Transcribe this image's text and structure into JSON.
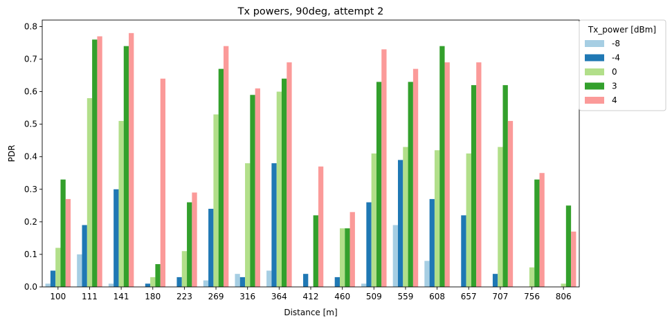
{
  "chart_data": {
    "type": "bar",
    "title": "Tx powers, 90deg, attempt 2",
    "xlabel": "Distance [m]",
    "ylabel": "PDR",
    "ylim": [
      0,
      0.82
    ],
    "yticks": [
      "0.0",
      "0.1",
      "0.2",
      "0.3",
      "0.4",
      "0.5",
      "0.6",
      "0.7",
      "0.8"
    ],
    "ytick_values": [
      0.0,
      0.1,
      0.2,
      0.3,
      0.4,
      0.5,
      0.6,
      0.7,
      0.8
    ],
    "grid": false,
    "legend": {
      "title": "Tx_power [dBm]",
      "placement": "outside-top-right"
    },
    "categories": [
      "100",
      "111",
      "141",
      "180",
      "223",
      "269",
      "316",
      "364",
      "412",
      "460",
      "509",
      "559",
      "608",
      "657",
      "707",
      "756",
      "806"
    ],
    "series": [
      {
        "name": "-8",
        "color": "#a6cee3",
        "values": [
          0.01,
          0.1,
          0.01,
          0.0,
          0.0,
          0.02,
          0.04,
          0.05,
          0.0,
          0.0,
          0.01,
          0.19,
          0.08,
          0.0,
          0.0,
          0.0,
          0.0
        ]
      },
      {
        "name": "-4",
        "color": "#1f78b4",
        "values": [
          0.05,
          0.19,
          0.3,
          0.01,
          0.03,
          0.24,
          0.03,
          0.38,
          0.04,
          0.03,
          0.26,
          0.39,
          0.27,
          0.22,
          0.04,
          0.0,
          0.0
        ]
      },
      {
        "name": "0",
        "color": "#b2df8a",
        "values": [
          0.12,
          0.58,
          0.51,
          0.03,
          0.11,
          0.53,
          0.38,
          0.6,
          0.0,
          0.18,
          0.41,
          0.43,
          0.42,
          0.41,
          0.43,
          0.06,
          0.01
        ]
      },
      {
        "name": "3",
        "color": "#33a02c",
        "values": [
          0.33,
          0.76,
          0.74,
          0.07,
          0.26,
          0.67,
          0.59,
          0.64,
          0.22,
          0.18,
          0.63,
          0.63,
          0.74,
          0.62,
          0.62,
          0.33,
          0.25
        ]
      },
      {
        "name": "4",
        "color": "#fb9a99",
        "values": [
          0.27,
          0.77,
          0.78,
          0.64,
          0.29,
          0.74,
          0.61,
          0.69,
          0.37,
          0.23,
          0.73,
          0.67,
          0.69,
          0.69,
          0.51,
          0.35,
          0.17
        ]
      }
    ]
  }
}
